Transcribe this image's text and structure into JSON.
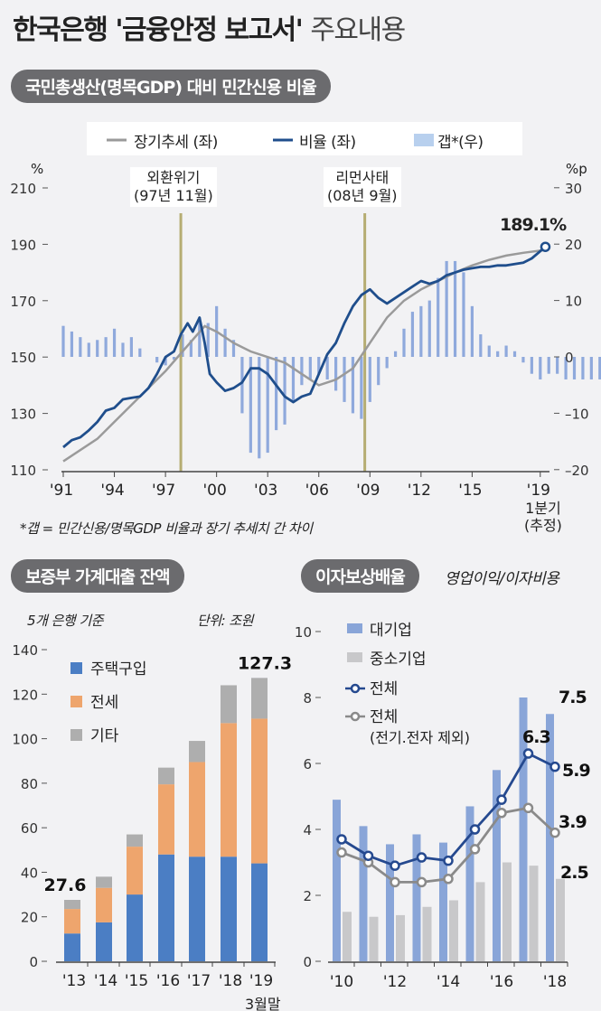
{
  "title": {
    "bold": "한국은행 '금융안정 보고서'",
    "light": "주요내용"
  },
  "section1": {
    "pill": "국민총생산(명목GDP) 대비 민간신용 비율",
    "footnote": "*갭 = 민간신용/명목GDP 비율과 장기 추세치 간 차이",
    "last_x_label": [
      "1분기",
      "(추정)"
    ]
  },
  "section2": {
    "pill": "보증부 가계대출 잔액",
    "basis": "5개 은행 기준",
    "unit": "단위: 조원",
    "last_x_sub": "3월말"
  },
  "section3": {
    "pill": "이자보상배율",
    "subtitle": "영업이익/이자비용"
  },
  "colors": {
    "trend": "#9a9a9a",
    "ratio": "#1f4e8c",
    "gap": "#8fa9dc",
    "event": "#b5ad72",
    "house": "#4b7ec4",
    "jeonse": "#eea56d",
    "other": "#aeaeae",
    "large": "#89a5d8",
    "sme": "#c8c8ca",
    "total": "#25498f",
    "total_ex": "#8a8a8a"
  },
  "chart_data": [
    {
      "type": "line",
      "title": "국민총생산(명목GDP) 대비 민간신용 비율",
      "left_unit": "%",
      "right_unit": "%p",
      "ylim": [
        110,
        210
      ],
      "yticks": [
        110,
        130,
        150,
        170,
        190,
        210
      ],
      "y2lim": [
        -20,
        30
      ],
      "y2ticks": [
        "-20",
        "-10",
        "0",
        "10",
        "20",
        "30"
      ],
      "xticks": [
        "'91",
        "'94",
        "'97",
        "'00",
        "'03",
        "'06",
        "'09",
        "'12",
        "'15",
        "'19"
      ],
      "xtick_years": [
        1991,
        1994,
        1997,
        2000,
        2003,
        2006,
        2009,
        2012,
        2015,
        2019
      ],
      "legend": [
        "장기추세 (좌)",
        "비율 (좌)",
        "갭*(우)"
      ],
      "events": [
        {
          "label": [
            "외환위기",
            "(97년 11월)"
          ],
          "x": 1997.9
        },
        {
          "label": [
            "리먼사태",
            "(08년 9월)"
          ],
          "x": 2008.7
        }
      ],
      "end_label": "189.1%",
      "series": [
        {
          "name": "비율 (좌)",
          "x": [
            1991,
            1991.5,
            1992,
            1992.5,
            1993,
            1993.5,
            1994,
            1994.5,
            1995,
            1995.5,
            1996,
            1996.5,
            1997,
            1997.5,
            1997.9,
            1998.3,
            1998.6,
            1999,
            1999.3,
            1999.6,
            2000,
            2000.5,
            2001,
            2001.5,
            2002,
            2002.5,
            2003,
            2003.5,
            2004,
            2004.5,
            2005,
            2005.5,
            2006,
            2006.5,
            2007,
            2007.5,
            2008,
            2008.5,
            2009,
            2009.5,
            2010,
            2010.5,
            2011,
            2011.5,
            2012,
            2012.5,
            2013,
            2013.5,
            2014,
            2014.5,
            2015,
            2015.5,
            2016,
            2016.5,
            2017,
            2017.5,
            2018,
            2018.5,
            2019.3
          ],
          "y": [
            118,
            120.5,
            121.5,
            124,
            127,
            131,
            132,
            135,
            135.5,
            136,
            139,
            144,
            150,
            152,
            158,
            162,
            159,
            164,
            155,
            144,
            141,
            138,
            139,
            141,
            146,
            146,
            144,
            140,
            136,
            134,
            136,
            137,
            144,
            151,
            155,
            162,
            168,
            172,
            174,
            171,
            169,
            171,
            173,
            175,
            177,
            176,
            177,
            179,
            180,
            181,
            181.5,
            182,
            182,
            182.5,
            182.5,
            183,
            183.5,
            185,
            189.1
          ]
        },
        {
          "name": "장기추세 (좌)",
          "x": [
            1991,
            1993,
            1995,
            1997,
            1998,
            1999.3,
            2000,
            2001,
            2002,
            2003,
            2004,
            2005,
            2006,
            2007,
            2008,
            2009,
            2010,
            2011,
            2012,
            2013,
            2014,
            2015,
            2016,
            2017,
            2018,
            2019.3
          ],
          "y": [
            113,
            121,
            133,
            145,
            152,
            161,
            159,
            155,
            152,
            150,
            148,
            144,
            140,
            142,
            146,
            155,
            164,
            170,
            174,
            177,
            180,
            182.5,
            184.5,
            186,
            187,
            188
          ]
        },
        {
          "name": "갭*(우)",
          "type": "bar",
          "start": 1991,
          "step": 0.5,
          "y": [
            5.5,
            4.5,
            3.5,
            2.5,
            3,
            3.5,
            5,
            2.5,
            3.5,
            1.5,
            0,
            -1,
            -1.5,
            -0.5,
            4,
            3,
            7,
            6,
            9,
            5,
            3,
            -10,
            -17,
            -18,
            -17,
            -13,
            -12,
            -8,
            -5,
            -4,
            -3,
            -4,
            -6,
            -8,
            -10,
            -11,
            -8,
            -5,
            -2,
            1,
            5,
            8,
            9,
            10,
            14,
            17,
            17,
            15,
            9,
            4,
            2,
            1,
            2,
            1,
            -1,
            -3,
            -4,
            -3,
            -3,
            -4,
            -4,
            -4,
            -4,
            -4,
            -3,
            -1,
            1
          ]
        }
      ]
    },
    {
      "type": "bar",
      "stacked": true,
      "title": "보증부 가계대출 잔액",
      "ylim": [
        0,
        140
      ],
      "yticks": [
        0,
        20,
        40,
        60,
        80,
        100,
        120,
        140
      ],
      "categories": [
        "'13",
        "'14",
        "'15",
        "'16",
        "'17",
        "'18",
        "'19"
      ],
      "series": [
        {
          "name": "주택구입",
          "values": [
            12.5,
            17.5,
            30,
            48,
            47,
            47,
            44
          ]
        },
        {
          "name": "전세",
          "values": [
            11,
            15.5,
            21.5,
            31.5,
            42.5,
            60,
            65
          ]
        },
        {
          "name": "기타",
          "values": [
            4.1,
            5,
            5.5,
            7.5,
            9.5,
            17,
            18.3
          ]
        }
      ],
      "totals": [
        27.6,
        38,
        57,
        87,
        99,
        124,
        127.3
      ],
      "data_labels": [
        {
          "index": 0,
          "text": "27.6"
        },
        {
          "index": 6,
          "text": "127.3"
        }
      ]
    },
    {
      "type": "bar+line",
      "title": "이자보상배율",
      "ylim": [
        0,
        10
      ],
      "yticks": [
        0,
        2,
        4,
        6,
        8,
        10
      ],
      "categories": [
        "'10",
        "'11",
        "'12",
        "'13",
        "'14",
        "'15",
        "'16",
        "'17",
        "'18"
      ],
      "xtick_labels": [
        "'10",
        "",
        "'12",
        "",
        "'14",
        "",
        "'16",
        "",
        "'18"
      ],
      "series": [
        {
          "name": "대기업",
          "type": "bar",
          "values": [
            4.9,
            4.1,
            3.55,
            3.85,
            3.6,
            4.7,
            5.8,
            8.0,
            7.5
          ]
        },
        {
          "name": "중소기업",
          "type": "bar",
          "values": [
            1.5,
            1.35,
            1.4,
            1.65,
            1.85,
            2.4,
            3.0,
            2.9,
            2.5
          ]
        },
        {
          "name": "전체",
          "type": "line",
          "values": [
            3.7,
            3.2,
            2.9,
            3.15,
            3.05,
            4.0,
            4.9,
            6.3,
            5.9
          ]
        },
        {
          "name": "전체",
          "sub": "(전기.전자 제외)",
          "type": "line",
          "values": [
            3.3,
            3.0,
            2.4,
            2.4,
            2.5,
            3.4,
            4.5,
            4.65,
            3.9
          ]
        }
      ],
      "data_labels": [
        "7.5",
        "6.3",
        "5.9",
        "3.9",
        "2.5"
      ]
    }
  ]
}
